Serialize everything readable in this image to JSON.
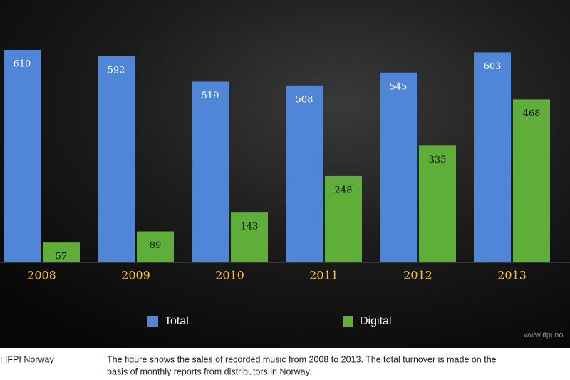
{
  "chart_data": {
    "type": "bar",
    "categories": [
      "2008",
      "2009",
      "2010",
      "2011",
      "2012",
      "2013"
    ],
    "series": [
      {
        "name": "Total",
        "color": "#4f86d8",
        "values": [
          610,
          592,
          519,
          508,
          545,
          603
        ]
      },
      {
        "name": "Digital",
        "color": "#5fae3a",
        "values": [
          57,
          89,
          143,
          248,
          335,
          468
        ]
      }
    ],
    "watermark": "www.ifpi.no",
    "source": ": IFPI Norway",
    "caption": [
      "The figure shows the sales of recorded music from 2008 to 2013. The total turnover is made on the",
      "basis of monthly reports from distributors in Norway."
    ]
  }
}
